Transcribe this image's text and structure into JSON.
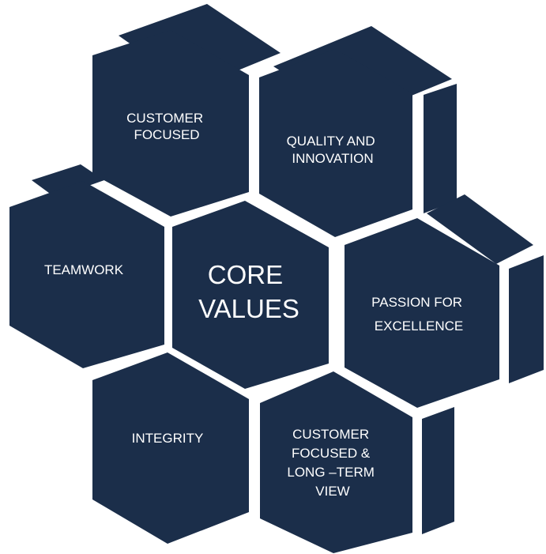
{
  "diagram": {
    "center": {
      "lines": [
        "CORE",
        "VALUES"
      ]
    },
    "values": [
      {
        "id": "customer-focused",
        "lines": [
          "CUSTOMER",
          "FOCUSED"
        ]
      },
      {
        "id": "quality-and-innovation",
        "lines": [
          "QUALITY AND",
          "INNOVATION"
        ]
      },
      {
        "id": "teamwork",
        "lines": [
          "TEAMWORK"
        ]
      },
      {
        "id": "passion-for-excellence",
        "lines": [
          "PASSION FOR",
          "EXCELLENCE"
        ]
      },
      {
        "id": "integrity",
        "lines": [
          "INTEGRITY"
        ]
      },
      {
        "id": "customer-focused-long-term-view",
        "lines": [
          "CUSTOMER",
          "FOCUSED &",
          "LONG –TERM",
          "VIEW"
        ]
      }
    ]
  }
}
